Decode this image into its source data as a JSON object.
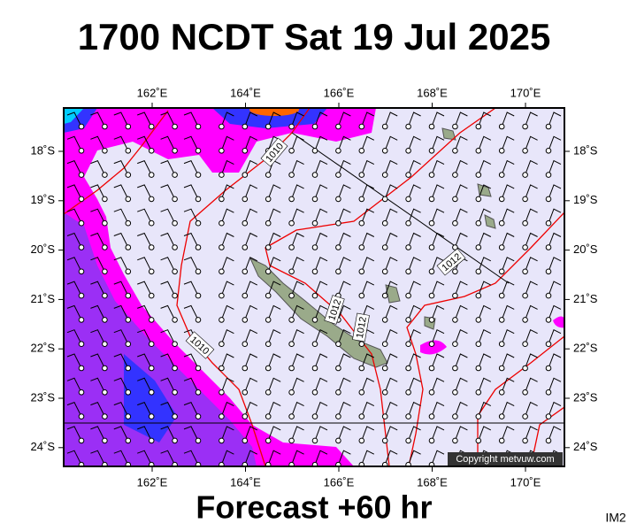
{
  "title": "1700 NCDT Sat 19 Jul 2025",
  "longitude_labels": [
    "162˚E",
    "164˚E",
    "166˚E",
    "168˚E",
    "170˚E"
  ],
  "latitude_labels": [
    "18˚S",
    "19˚S",
    "20˚S",
    "21˚S",
    "22˚S",
    "23˚S",
    "24˚S"
  ],
  "isobar_labels": [
    "1010",
    "1010",
    "1012",
    "1012",
    "1012"
  ],
  "copyright": "Copyright metvuw.com",
  "footer": "Forecast +60 hr",
  "image_id": "IM2"
}
